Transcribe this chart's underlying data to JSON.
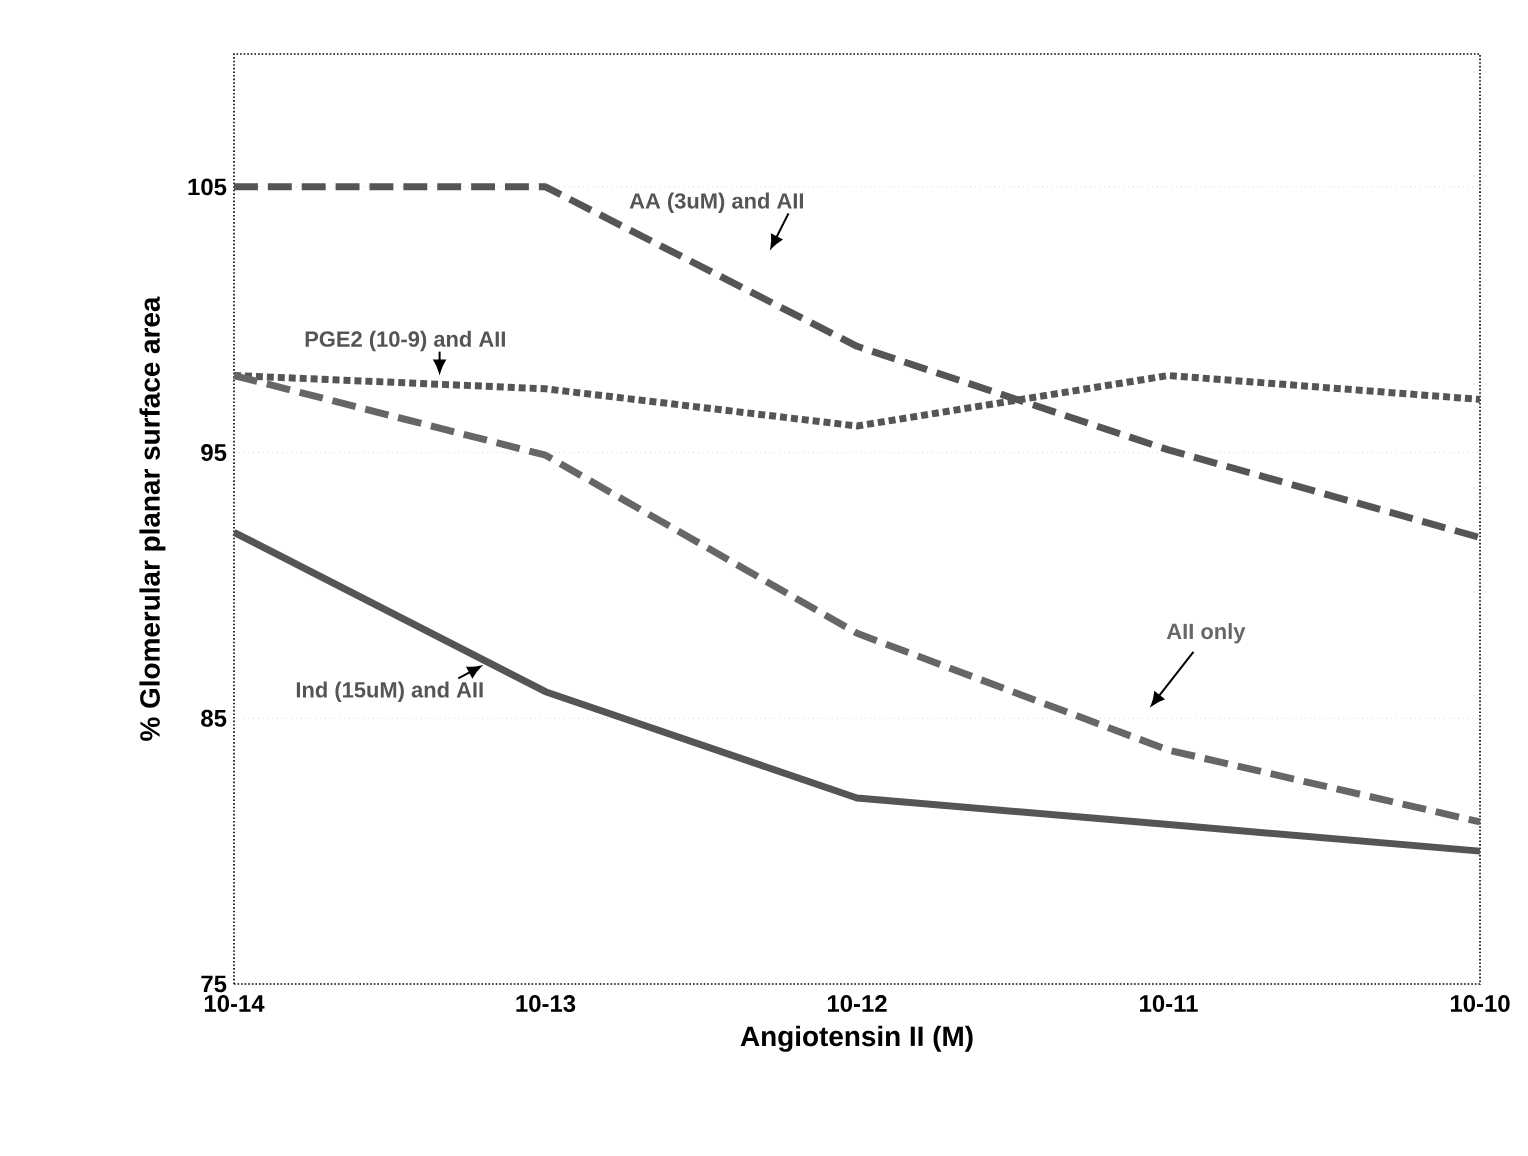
{
  "chart_data": {
    "type": "line",
    "xlabel": "Angiotensin II (M)",
    "ylabel": "% Glomerular planar surface area",
    "categories": [
      "10-14",
      "10-13",
      "10-12",
      "10-11",
      "10-10"
    ],
    "ylim": [
      75,
      110
    ],
    "yticks": [
      75,
      85,
      95,
      105
    ],
    "grid": "y",
    "marker": "none",
    "series": [
      {
        "name": "AA (3uM) and AII",
        "color": "#555555",
        "line_style": "dashed",
        "values": [
          105,
          105,
          99.0,
          95.1,
          91.8
        ]
      },
      {
        "name": "PGE2 (10-9) and AII",
        "color": "#555555",
        "line_style": "dotted",
        "values": [
          97.9,
          97.4,
          96.0,
          97.9,
          97.0
        ]
      },
      {
        "name": "AII only",
        "color": "#666666",
        "line_style": "dashed",
        "values": [
          97.9,
          94.9,
          88.2,
          83.8,
          81.1
        ]
      },
      {
        "name": "Ind (15uM) and AII",
        "color": "#555555",
        "line_style": "solid",
        "values": [
          92.0,
          86.0,
          82.0,
          81.0,
          80.0
        ]
      }
    ]
  }
}
